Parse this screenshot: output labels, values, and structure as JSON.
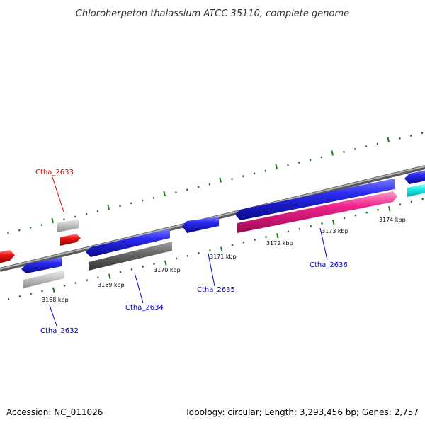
{
  "title": "Chloroherpeton thalassium ATCC 35110, complete genome",
  "footer": {
    "accession": "Accession: NC_011026",
    "summary": "Topology: circular; Length: 3,293,456 bp; Genes: 2,757"
  },
  "colors": {
    "backbone": "#8c8c8c",
    "tick": "#1a7a1a",
    "gene_blue": "#1a1ad6",
    "gene_light_gray": "#c4c4c4",
    "gene_dark_gray": "#666666",
    "gene_red": "#ee1111",
    "gene_magenta": "#ee2288",
    "gene_cyan": "#22eeee",
    "label_blue": "#0000cc",
    "label_red": "#dd0000"
  },
  "scale_labels": [
    "3168 kbp",
    "3169 kbp",
    "3170 kbp",
    "3171 kbp",
    "3172 kbp",
    "3173 kbp",
    "3174 kbp"
  ],
  "gene_labels": [
    {
      "text": "Ctha_2632",
      "color": "blue"
    },
    {
      "text": "Ctha_2633",
      "color": "red"
    },
    {
      "text": "Ctha_2634",
      "color": "blue"
    },
    {
      "text": "Ctha_2635",
      "color": "blue"
    },
    {
      "text": "Ctha_2636",
      "color": "blue"
    }
  ]
}
